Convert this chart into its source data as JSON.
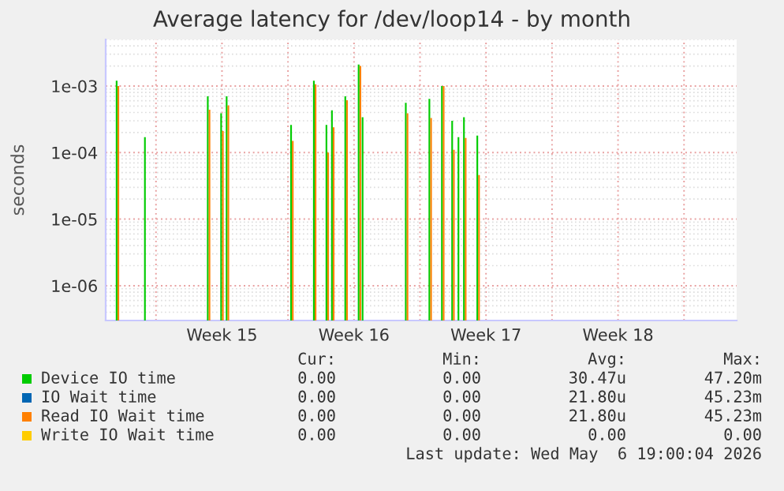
{
  "chart_data": {
    "type": "bar",
    "title": "Average latency for /dev/loop14 - by month",
    "ylabel": "seconds",
    "x": [
      "2026-04-03T23:00",
      "2026-04-05T11:00",
      "2026-04-08T19:00",
      "2026-04-09T12:00",
      "2026-04-09T19:00",
      "2026-04-13T05:00",
      "2026-04-14T10:00",
      "2026-04-15T02:00",
      "2026-04-15T09:00",
      "2026-04-16T02:00",
      "2026-04-16T19:00",
      "2026-04-17T00:00",
      "2026-04-19T07:00",
      "2026-04-20T13:00",
      "2026-04-21T05:00",
      "2026-04-21T18:00",
      "2026-04-22T02:00",
      "2026-04-22T09:00",
      "2026-04-23T02:00"
    ],
    "series": [
      {
        "name": "Device IO time",
        "color": "#00cc00",
        "values": [
          0.0012,
          0.00017,
          0.0007,
          0.00039,
          0.0007,
          0.00026,
          0.0012,
          0.00026,
          0.00043,
          0.0007,
          0.0021,
          0.00034,
          0.00056,
          0.00064,
          0.001,
          0.0003,
          0.00017,
          0.00034,
          0.00018
        ]
      },
      {
        "name": "IO Wait time",
        "color": "#0066b3",
        "values": [
          null,
          null,
          null,
          null,
          null,
          null,
          null,
          null,
          null,
          null,
          null,
          null,
          null,
          null,
          null,
          null,
          null,
          null,
          null
        ]
      },
      {
        "name": "Read IO Wait time",
        "color": "#ff8000",
        "values": [
          0.001,
          null,
          0.00044,
          0.00021,
          0.00051,
          0.00015,
          0.00106,
          0.0001,
          0.00024,
          0.00061,
          0.002,
          null,
          0.00039,
          0.00033,
          0.001,
          0.00011,
          null,
          0.000166,
          4.6e-05
        ]
      },
      {
        "name": "Write IO Wait time",
        "color": "#ffcc00",
        "values": [
          null,
          null,
          null,
          null,
          null,
          null,
          null,
          null,
          null,
          null,
          null,
          null,
          null,
          null,
          null,
          null,
          null,
          null,
          null
        ]
      }
    ],
    "log": "y",
    "ylim": [
      3e-07,
      0.005
    ],
    "yticks": [
      {
        "value": 0.001,
        "label": "1e-03"
      },
      {
        "value": 0.0001,
        "label": "1e-04"
      },
      {
        "value": 1e-05,
        "label": "1e-05"
      },
      {
        "value": 1e-06,
        "label": "1e-06"
      }
    ],
    "xlim": [
      "2026-04-03T08:00",
      "2026-05-06T19:00"
    ],
    "xticks": [
      {
        "value": "2026-04-06",
        "label": null
      },
      {
        "value": "2026-04-09T12:00",
        "label": "Week 15"
      },
      {
        "value": "2026-04-13",
        "label": null
      },
      {
        "value": "2026-04-16T12:00",
        "label": "Week 16"
      },
      {
        "value": "2026-04-20",
        "label": null
      },
      {
        "value": "2026-04-23T12:00",
        "label": "Week 17"
      },
      {
        "value": "2026-04-27",
        "label": null
      },
      {
        "value": "2026-04-30T12:00",
        "label": "Week 18"
      },
      {
        "value": "2026-05-04",
        "label": null
      }
    ],
    "grid": true,
    "legend": "bottom",
    "annotations": [
      "Cur:",
      "Min:",
      "Avg:",
      "Max:",
      "0.00",
      "0.00",
      "30.47u",
      "47.20m",
      "0.00",
      "0.00",
      "21.80u",
      "45.23m",
      "0.00",
      "0.00",
      "21.80u",
      "45.23m",
      "0.00",
      "0.00",
      "0.00",
      "0.00",
      "Last update: Wed May  6 19:00:04 2026"
    ]
  }
}
